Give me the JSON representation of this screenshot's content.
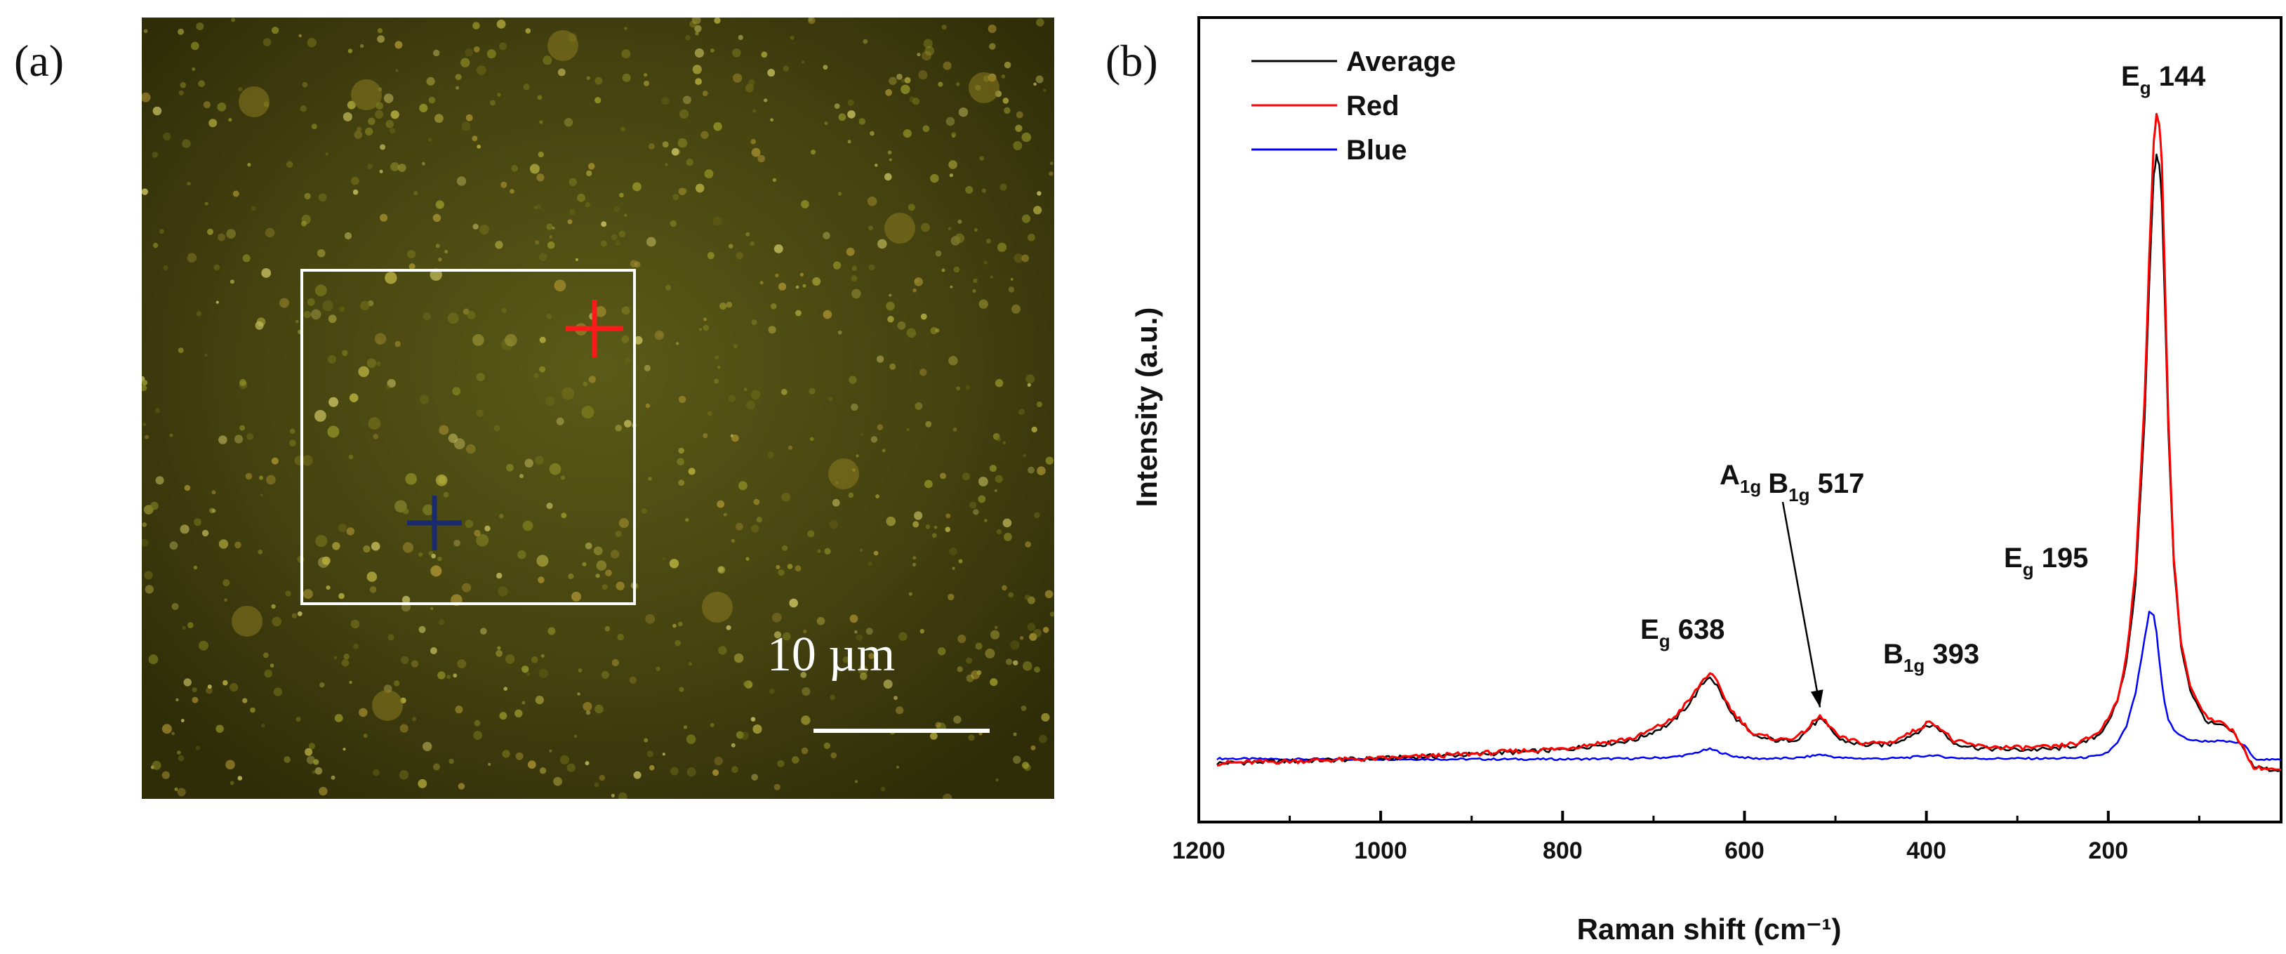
{
  "panel_a": {
    "label": "(a)",
    "scale_bar_text": "10 µm",
    "image_base_color": "#3b3a0e",
    "roi_color": "#ffffff",
    "markers": [
      {
        "name": "red",
        "color": "#ff1a1a"
      },
      {
        "name": "blue",
        "color": "#1a2a6e"
      }
    ]
  },
  "panel_b": {
    "label": "(b)"
  },
  "chart_data": {
    "type": "line",
    "title": "",
    "xlabel": "Raman shift (cm⁻¹)",
    "ylabel": "Intensity (a.u.)",
    "xlim": [
      1200,
      10
    ],
    "x_reversed": true,
    "ylim": [
      0,
      10
    ],
    "x_ticks": [
      1200,
      1000,
      800,
      600,
      400,
      200
    ],
    "y_ticks_shown": false,
    "legend_position": "top-left",
    "series": [
      {
        "name": "Average",
        "color": "#000000",
        "x": [
          1180,
          1100,
          1000,
          900,
          800,
          720,
          680,
          660,
          645,
          638,
          630,
          615,
          590,
          560,
          540,
          525,
          517,
          508,
          495,
          470,
          440,
          415,
          400,
          393,
          385,
          370,
          340,
          300,
          260,
          230,
          210,
          200,
          190,
          180,
          170,
          160,
          155,
          150,
          147,
          144,
          141,
          138,
          134,
          128,
          120,
          110,
          100,
          90,
          80,
          70,
          60,
          40,
          20,
          10
        ],
        "y": [
          0.05,
          0.08,
          0.12,
          0.18,
          0.25,
          0.4,
          0.65,
          0.95,
          1.25,
          1.35,
          1.2,
          0.8,
          0.45,
          0.38,
          0.42,
          0.62,
          0.7,
          0.6,
          0.4,
          0.32,
          0.33,
          0.48,
          0.6,
          0.62,
          0.55,
          0.35,
          0.27,
          0.25,
          0.26,
          0.33,
          0.48,
          0.68,
          0.95,
          1.55,
          2.7,
          5.2,
          7.2,
          8.8,
          9.1,
          9.0,
          8.4,
          7.0,
          5.0,
          3.0,
          1.8,
          1.15,
          0.85,
          0.65,
          0.62,
          0.58,
          0.45,
          0.0,
          -0.05,
          -0.05
        ]
      },
      {
        "name": "Red",
        "color": "#ff0000",
        "x": [
          1180,
          1100,
          1000,
          900,
          800,
          720,
          680,
          660,
          645,
          638,
          630,
          615,
          590,
          560,
          540,
          525,
          517,
          508,
          495,
          470,
          440,
          415,
          400,
          393,
          385,
          370,
          340,
          300,
          260,
          230,
          210,
          200,
          190,
          180,
          170,
          160,
          155,
          150,
          147,
          144,
          141,
          138,
          134,
          128,
          120,
          110,
          100,
          90,
          80,
          70,
          60,
          40,
          20,
          10
        ],
        "y": [
          0.05,
          0.08,
          0.12,
          0.19,
          0.27,
          0.43,
          0.7,
          1.0,
          1.3,
          1.4,
          1.25,
          0.85,
          0.48,
          0.4,
          0.45,
          0.65,
          0.75,
          0.63,
          0.43,
          0.35,
          0.36,
          0.52,
          0.64,
          0.66,
          0.58,
          0.38,
          0.3,
          0.28,
          0.29,
          0.36,
          0.52,
          0.72,
          1.0,
          1.65,
          2.9,
          5.5,
          7.6,
          9.3,
          9.7,
          9.6,
          9.0,
          7.4,
          5.2,
          3.1,
          1.85,
          1.2,
          0.9,
          0.7,
          0.66,
          0.62,
          0.48,
          0.0,
          -0.05,
          -0.05
        ]
      },
      {
        "name": "Blue",
        "color": "#0000ff",
        "x": [
          1180,
          1100,
          1000,
          900,
          800,
          720,
          680,
          660,
          645,
          638,
          630,
          615,
          590,
          560,
          540,
          525,
          517,
          508,
          495,
          470,
          440,
          415,
          400,
          393,
          385,
          370,
          340,
          300,
          260,
          230,
          210,
          200,
          190,
          180,
          170,
          160,
          155,
          150,
          147,
          144,
          141,
          138,
          134,
          128,
          120,
          110,
          100,
          90,
          80,
          70,
          60,
          50,
          40,
          20,
          10
        ],
        "y": [
          0.12,
          0.11,
          0.11,
          0.11,
          0.11,
          0.12,
          0.14,
          0.18,
          0.24,
          0.26,
          0.23,
          0.16,
          0.12,
          0.12,
          0.13,
          0.16,
          0.18,
          0.16,
          0.13,
          0.12,
          0.12,
          0.14,
          0.16,
          0.17,
          0.15,
          0.13,
          0.12,
          0.12,
          0.12,
          0.13,
          0.16,
          0.22,
          0.35,
          0.6,
          1.1,
          1.9,
          2.3,
          2.25,
          2.0,
          1.6,
          1.25,
          0.95,
          0.7,
          0.55,
          0.45,
          0.4,
          0.38,
          0.38,
          0.38,
          0.37,
          0.36,
          0.32,
          0.12,
          0.1,
          0.1
        ]
      }
    ],
    "annotations": [
      {
        "text": "E",
        "sub": "g",
        "rest": " 144",
        "x": 144,
        "y": 9.9
      },
      {
        "text": "E",
        "sub": "g",
        "rest": " 195",
        "x": 195,
        "y": 3.3
      },
      {
        "text": "B",
        "sub": "1g",
        "rest": " 393",
        "x": 393,
        "y": 1.7
      },
      {
        "text": "A",
        "sub": "1g",
        "rest": "",
        "text2": "B",
        "sub2": "1g",
        "rest2": " 517",
        "x": 517,
        "y": 4.6,
        "arrow_to_y": 0.78
      },
      {
        "text": "E",
        "sub": "g",
        "rest": " 638",
        "x": 638,
        "y": 2.1
      }
    ]
  }
}
